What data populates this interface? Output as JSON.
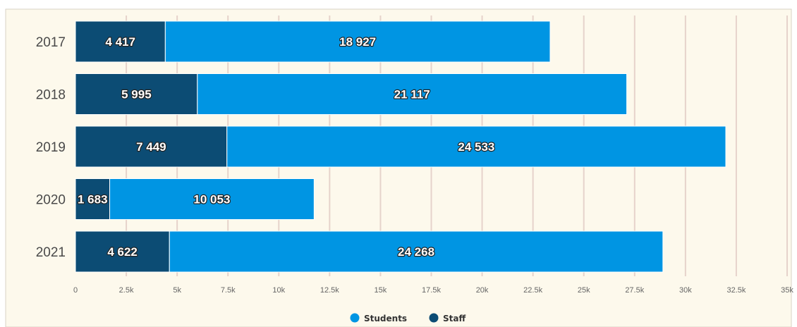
{
  "colors": {
    "background": "#fdf9ec",
    "gridline": "#e6d3cb",
    "students": "#0095e3",
    "staff": "#0c4c74",
    "frame": "#d8d2c4"
  },
  "chart_data": {
    "type": "bar",
    "orientation": "horizontal",
    "stacked": true,
    "categories": [
      "2017",
      "2018",
      "2019",
      "2020",
      "2021"
    ],
    "series": [
      {
        "name": "Staff",
        "values": [
          4417,
          5995,
          7449,
          1683,
          4622
        ],
        "labels": [
          "4 417",
          "5 995",
          "7 449",
          "1 683",
          "4 622"
        ]
      },
      {
        "name": "Students",
        "values": [
          18927,
          21117,
          24533,
          10053,
          24268
        ],
        "labels": [
          "18 927",
          "21 117",
          "24 533",
          "10 053",
          "24 268"
        ]
      }
    ],
    "xlim": [
      0,
      35000
    ],
    "x_ticks": [
      0,
      2500,
      5000,
      7500,
      10000,
      12500,
      15000,
      17500,
      20000,
      22500,
      25000,
      27500,
      30000,
      32500,
      35000
    ],
    "x_tick_labels": [
      "0",
      "2.5k",
      "5k",
      "7.5k",
      "10k",
      "12.5k",
      "15k",
      "17.5k",
      "20k",
      "22.5k",
      "25k",
      "27.5k",
      "30k",
      "32.5k",
      "35k"
    ],
    "grid": true,
    "legend": {
      "position": "bottom-center",
      "entries": [
        "Students",
        "Staff"
      ]
    }
  }
}
